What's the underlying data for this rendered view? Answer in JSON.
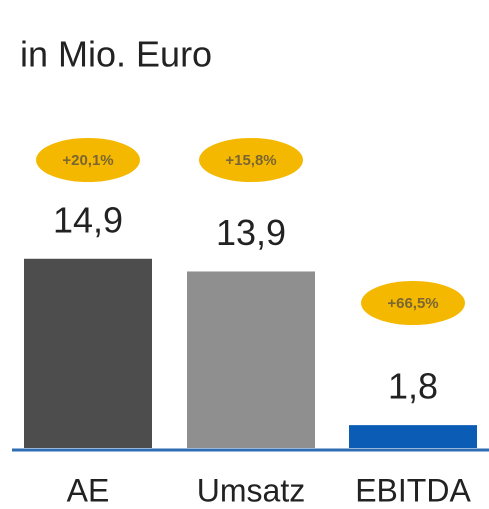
{
  "chart_data": {
    "type": "bar",
    "title": "in Mio. Euro",
    "categories": [
      "AE",
      "Umsatz",
      "EBITDA"
    ],
    "values": [
      14.9,
      13.9,
      1.8
    ],
    "value_labels": [
      "14,9",
      "13,9",
      "1,8"
    ],
    "colors": [
      "#4d4d4d",
      "#8f8f8f",
      "#0a5cb4"
    ],
    "annotations": [
      "+20,1%",
      "+15,8%",
      "+66,5%"
    ]
  }
}
